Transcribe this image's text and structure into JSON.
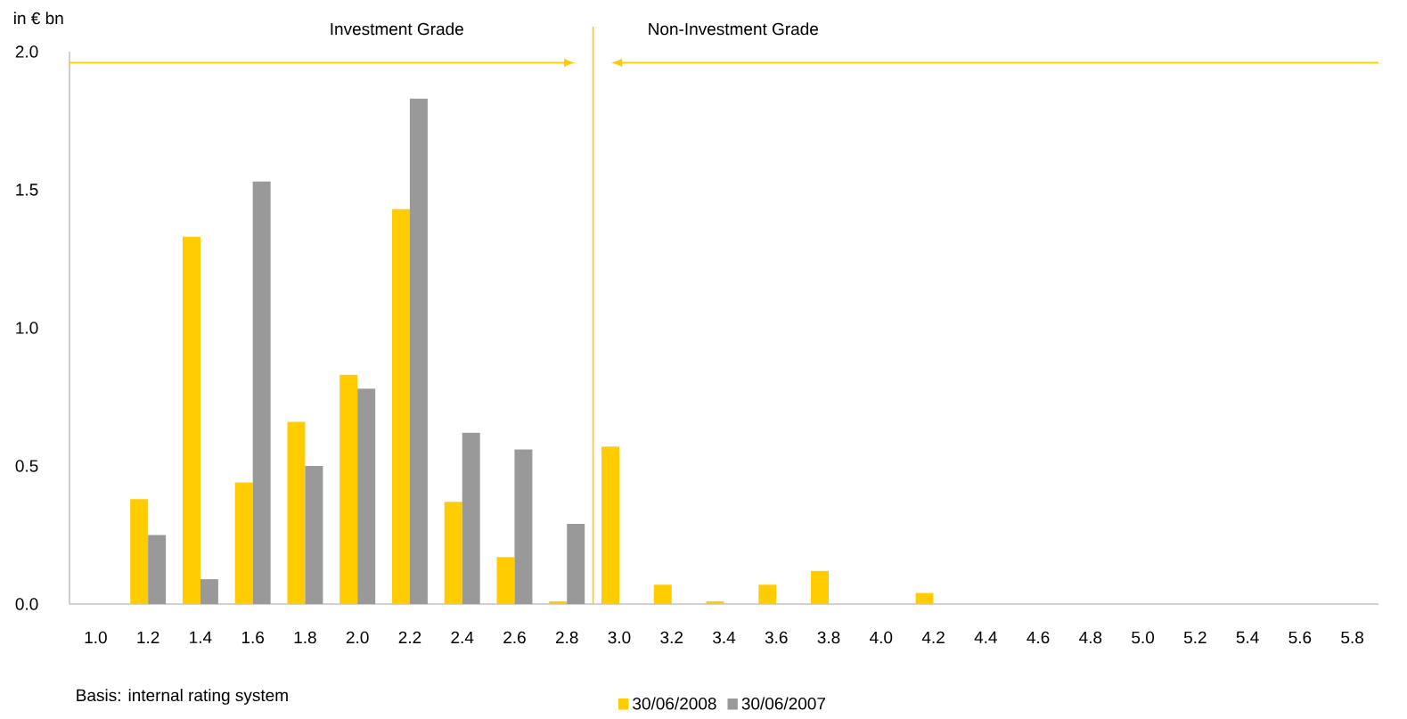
{
  "chart_data": {
    "type": "bar",
    "ylabel": "in € bn",
    "x": [
      1.0,
      1.2,
      1.4,
      1.6,
      1.8,
      2.0,
      2.2,
      2.4,
      2.6,
      2.8,
      3.0,
      3.2,
      3.4,
      3.6,
      3.8,
      4.0,
      4.2,
      4.4,
      4.6,
      4.8,
      5.0,
      5.2,
      5.4,
      5.6,
      5.8
    ],
    "series": [
      {
        "name": "30/06/2008",
        "color": "#ffcc00",
        "values": [
          0,
          0.38,
          1.33,
          0.44,
          0.66,
          0.83,
          1.43,
          0.37,
          0.17,
          0.01,
          0.57,
          0.07,
          0.01,
          0.07,
          0.12,
          0,
          0.04,
          0,
          0,
          0,
          0,
          0,
          0,
          0,
          0
        ]
      },
      {
        "name": "30/06/2007",
        "color": "#999999",
        "values": [
          null,
          0.25,
          0.09,
          1.53,
          0.5,
          0.78,
          1.83,
          0.62,
          0.56,
          0.29,
          null,
          null,
          null,
          null,
          null,
          null,
          null,
          null,
          null,
          null,
          null,
          null,
          null,
          null,
          null
        ]
      }
    ],
    "xlim": [
      0.9,
      5.9
    ],
    "ylim": [
      0,
      2.0
    ],
    "xticks": [
      {
        "value": 1.0,
        "label": "1.0"
      },
      {
        "value": 1.2,
        "label": "1.2"
      },
      {
        "value": 1.4,
        "label": "1.4"
      },
      {
        "value": 1.6,
        "label": "1.6"
      },
      {
        "value": 1.8,
        "label": "1.8"
      },
      {
        "value": 2.0,
        "label": "2.0"
      },
      {
        "value": 2.2,
        "label": "2.2"
      },
      {
        "value": 2.4,
        "label": "2.4"
      },
      {
        "value": 2.6,
        "label": "2.6"
      },
      {
        "value": 2.8,
        "label": "2.8"
      },
      {
        "value": 3.0,
        "label": "3.0"
      },
      {
        "value": 3.2,
        "label": "3.2"
      },
      {
        "value": 3.4,
        "label": "3.4"
      },
      {
        "value": 3.6,
        "label": "3.6"
      },
      {
        "value": 3.8,
        "label": "3.8"
      },
      {
        "value": 4.0,
        "label": "4.0"
      },
      {
        "value": 4.2,
        "label": "4.2"
      },
      {
        "value": 4.4,
        "label": "4.4"
      },
      {
        "value": 4.6,
        "label": "4.6"
      },
      {
        "value": 4.8,
        "label": "4.8"
      },
      {
        "value": 5.0,
        "label": "5.0"
      },
      {
        "value": 5.2,
        "label": "5.2"
      },
      {
        "value": 5.4,
        "label": "5.4"
      },
      {
        "value": 5.6,
        "label": "5.6"
      },
      {
        "value": 5.8,
        "label": "5.8"
      }
    ],
    "yticks": [
      {
        "value": 0,
        "label": "0.0"
      },
      {
        "value": 0.5,
        "label": "0.5"
      },
      {
        "value": 1.0,
        "label": "1.0"
      },
      {
        "value": 1.5,
        "label": "1.5"
      },
      {
        "value": 2.0,
        "label": "2.0"
      }
    ],
    "ref_lines": [
      {
        "axis": "x",
        "value": 2.9,
        "color": "#ffcc00"
      }
    ],
    "annotations": [
      "Investment Grade",
      "Non-Investment Grade",
      "Basis: internal rating system"
    ],
    "legend": "bottom"
  }
}
